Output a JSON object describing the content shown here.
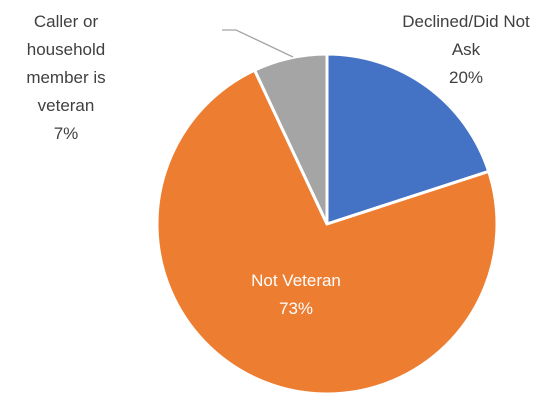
{
  "chart_data": {
    "type": "pie",
    "title": "",
    "legend": "none",
    "slices": [
      {
        "label_lines": [
          "Declined/Did Not",
          "Ask"
        ],
        "value": 20,
        "value_label": "20%",
        "color": "#4472C4",
        "label_color": "#404040"
      },
      {
        "label_lines": [
          "Not Veteran"
        ],
        "value": 73,
        "value_label": "73%",
        "color": "#ED7D31",
        "label_color": "#ffffff"
      },
      {
        "label_lines": [
          "Caller or",
          "household",
          "member is",
          "veteran"
        ],
        "value": 7,
        "value_label": "7%",
        "color": "#A5A5A5",
        "label_color": "#404040"
      }
    ],
    "start_angle_deg": 0,
    "direction": "clockwise"
  }
}
